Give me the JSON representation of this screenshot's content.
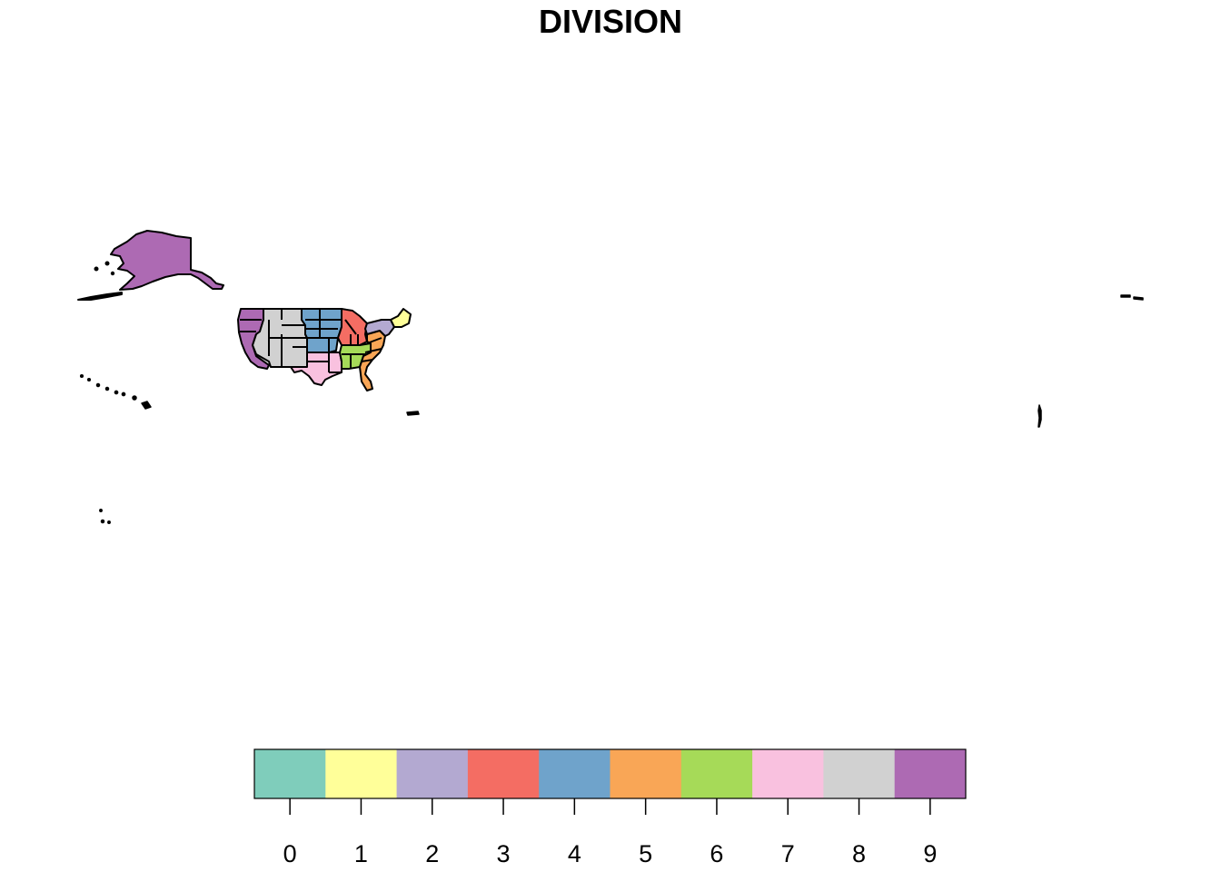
{
  "map": {
    "title": "DIVISION",
    "legend": {
      "categories": [
        "0",
        "1",
        "2",
        "3",
        "4",
        "5",
        "6",
        "7",
        "8",
        "9"
      ],
      "colors": [
        "#7FCDBB",
        "#FFFF99",
        "#B3A9D1",
        "#F46D63",
        "#6FA3CB",
        "#F9A656",
        "#A6DA58",
        "#F9C1DF",
        "#D1D1D1",
        "#AD6AB3"
      ]
    },
    "regions": [
      {
        "name": "alaska",
        "division": "9"
      },
      {
        "name": "pacific-coast",
        "division": "9"
      },
      {
        "name": "mountain",
        "division": "8"
      },
      {
        "name": "west-north-central",
        "division": "4"
      },
      {
        "name": "west-south-central",
        "division": "7"
      },
      {
        "name": "east-north-central",
        "division": "3"
      },
      {
        "name": "east-south-central",
        "division": "6"
      },
      {
        "name": "south-atlantic",
        "division": "5"
      },
      {
        "name": "middle-atlantic",
        "division": "2"
      },
      {
        "name": "new-england",
        "division": "1"
      }
    ]
  }
}
